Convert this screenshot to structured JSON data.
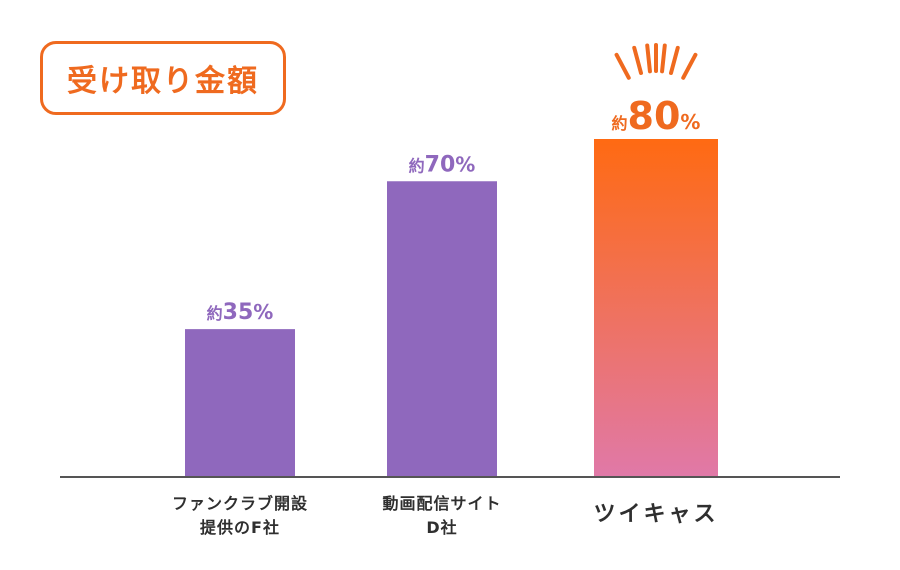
{
  "chart_data": {
    "type": "bar",
    "title": "受け取り金額",
    "categories": [
      {
        "lines": [
          "ファンクラブ開設",
          "提供のF社"
        ]
      },
      {
        "lines": [
          "動画配信サイト",
          "D社"
        ]
      },
      {
        "lines": [
          "ツイキャス"
        ]
      }
    ],
    "values": [
      35,
      70,
      80
    ],
    "labels": [
      {
        "prefix": "約",
        "value": "35",
        "unit": "%"
      },
      {
        "prefix": "約",
        "value": "70",
        "unit": "%"
      },
      {
        "prefix": "約",
        "value": "80",
        "unit": "%"
      }
    ],
    "ylim": [
      0,
      100
    ],
    "grid": false,
    "colors": {
      "bar_default": "#8f68bd",
      "bar_highlight_top": "#ff6a12",
      "bar_highlight_bottom": "#e079a8",
      "label_default": "#8f68bd",
      "label_highlight": "#ef6a1f",
      "axis": "#555555",
      "title": "#ef6a1f"
    }
  }
}
